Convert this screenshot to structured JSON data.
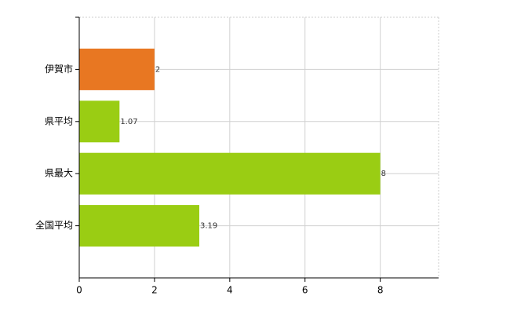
{
  "chart_data": {
    "type": "bar",
    "orientation": "horizontal",
    "categories": [
      "伊賀市",
      "県平均",
      "県最大",
      "全国平均"
    ],
    "values": [
      2,
      1.07,
      8,
      3.19
    ],
    "colors": [
      "#e87722",
      "#9acd13",
      "#9acd13",
      "#9acd13"
    ],
    "xlim": [
      0,
      9.55
    ],
    "xticks": [
      0,
      2,
      4,
      6,
      8
    ],
    "grid": true
  }
}
